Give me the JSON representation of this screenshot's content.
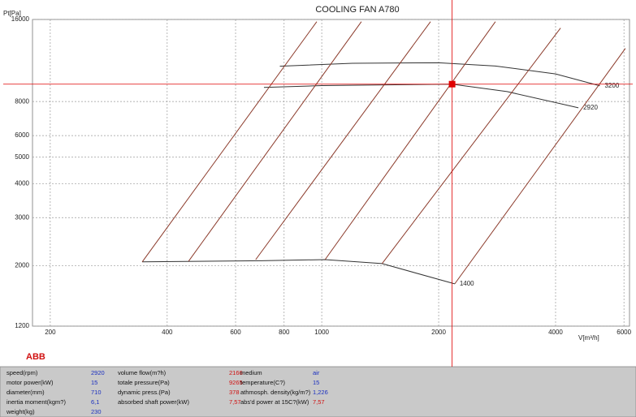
{
  "chart_data": {
    "type": "line",
    "title": "COOLING FAN  A780",
    "ylabel": "Pt[Pa]",
    "xlabel": "V[m³/h]",
    "xscale": "log",
    "yscale": "log",
    "grid": true,
    "xlim": [
      180,
      6200
    ],
    "ylim": [
      1200,
      16000
    ],
    "xticks": [
      200,
      400,
      600,
      800,
      1000,
      2000,
      4000,
      6000
    ],
    "yticks": [
      1200,
      2000,
      3000,
      4000,
      5000,
      6000,
      8000,
      16000
    ],
    "series": [
      {
        "name": "3200",
        "color": "#333333",
        "x": [
          780,
          1200,
          2000,
          2800,
          4000,
          5200
        ],
        "values": [
          10780,
          11050,
          11100,
          10800,
          10100,
          9140
        ]
      },
      {
        "name": "2920",
        "color": "#333333",
        "x": [
          710,
          1000,
          2166,
          3000,
          4580
        ],
        "values": [
          9010,
          9150,
          9265,
          8700,
          7590
        ]
      },
      {
        "name": "1400",
        "color": "#333333",
        "x": [
          345,
          700,
          1020,
          1430,
          2200
        ],
        "values": [
          2065,
          2085,
          2105,
          2035,
          1715
        ]
      },
      {
        "color": "#8b3a2a",
        "x": [
          345,
          971
        ],
        "values": [
          2065,
          15710
        ]
      },
      {
        "color": "#8b3a2a",
        "x": [
          454,
          1265
        ],
        "values": [
          2075,
          15710
        ]
      },
      {
        "color": "#8b3a2a",
        "x": [
          676,
          1906
        ],
        "values": [
          2105,
          15710
        ]
      },
      {
        "color": "#8b3a2a",
        "x": [
          1020,
          2800
        ],
        "values": [
          2105,
          15710
        ]
      },
      {
        "color": "#8b3a2a",
        "x": [
          1430,
          4120
        ],
        "values": [
          2035,
          14880
        ]
      },
      {
        "color": "#8b3a2a",
        "x": [
          2200,
          6050
        ],
        "values": [
          1715,
          12530
        ]
      }
    ],
    "operating_point": {
      "x": 2166,
      "y": 9265,
      "color": "#e00000"
    }
  },
  "panel": {
    "logo": "ABB",
    "col1": [
      {
        "label": "speed(rpm)",
        "value": "2920"
      },
      {
        "label": "motor power(kW)",
        "value": "15"
      },
      {
        "label": "diameter(mm)",
        "value": "710"
      },
      {
        "label": "inertia moment(kgm?)",
        "value": "6,1"
      },
      {
        "label": "weight(kg)",
        "value": "230"
      }
    ],
    "col2": [
      {
        "label": "volume flow(m?h)"
      },
      {
        "label": "totale pressure(Pa)"
      },
      {
        "label": "dynamic press.(Pa)",
        "value": "378"
      },
      {
        "label": "absorbed shaft power(kW)",
        "value": "7,57"
      }
    ],
    "col3": [
      {
        "label": "medium",
        "value": "air"
      },
      {
        "label": "temperature(C?)",
        "value": "15"
      },
      {
        "label": "athmosph. density(kg/m?)",
        "value": "1,226"
      },
      {
        "label": "abs'd power at 15C?(kW)",
        "value": "7,57"
      }
    ]
  }
}
